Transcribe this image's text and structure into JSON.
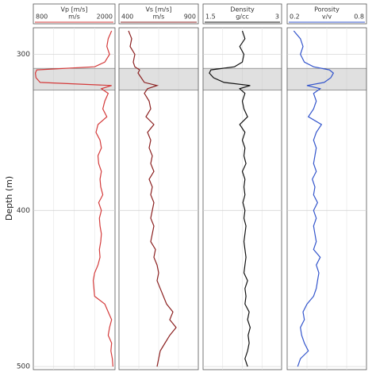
{
  "depth_axis": {
    "label": "Depth (m)",
    "ylim": [
      283,
      502
    ],
    "yticks": [
      300,
      400,
      500
    ],
    "shaded": [
      309,
      323
    ],
    "depth": [
      285,
      290,
      295,
      300,
      305,
      308,
      310,
      312,
      315,
      318,
      320,
      322,
      325,
      330,
      335,
      340,
      345,
      350,
      355,
      360,
      365,
      370,
      375,
      380,
      385,
      390,
      395,
      400,
      405,
      410,
      415,
      420,
      425,
      430,
      435,
      440,
      445,
      450,
      455,
      460,
      465,
      470,
      475,
      480,
      485,
      490,
      495,
      500
    ]
  },
  "chart_data": [
    {
      "type": "line",
      "title": "Vp [m/s]",
      "unit": "m/s",
      "xlim": [
        800,
        2000
      ],
      "xticks": [
        800,
        2000
      ],
      "color": "#d43a3a",
      "values": [
        1950,
        1900,
        1880,
        1920,
        1850,
        1700,
        850,
        830,
        840,
        900,
        1950,
        1800,
        1900,
        1850,
        1820,
        1880,
        1750,
        1720,
        1780,
        1800,
        1750,
        1760,
        1800,
        1780,
        1790,
        1820,
        1760,
        1800,
        1770,
        1780,
        1800,
        1790,
        1770,
        1780,
        1750,
        1700,
        1680,
        1690,
        1700,
        1850,
        1900,
        1950,
        1920,
        1900,
        1950,
        1940,
        1960,
        1970
      ]
    },
    {
      "type": "line",
      "title": "Vs [m/s]",
      "unit": "m/s",
      "xlim": [
        400,
        900
      ],
      "xticks": [
        400,
        900
      ],
      "color": "#8b2020",
      "values": [
        460,
        480,
        470,
        500,
        490,
        500,
        530,
        520,
        540,
        560,
        640,
        580,
        560,
        590,
        600,
        570,
        620,
        580,
        600,
        590,
        610,
        600,
        620,
        590,
        610,
        600,
        620,
        610,
        600,
        620,
        610,
        600,
        630,
        620,
        640,
        650,
        640,
        660,
        680,
        700,
        740,
        720,
        760,
        720,
        690,
        660,
        650,
        640
      ]
    },
    {
      "type": "line",
      "title": "Density",
      "unit": "g/cc",
      "xlim": [
        1.5,
        3
      ],
      "xticks": [
        1.5,
        3
      ],
      "color": "#111111",
      "values": [
        2.25,
        2.3,
        2.2,
        2.28,
        2.25,
        2.1,
        1.65,
        1.62,
        1.7,
        1.9,
        2.4,
        2.2,
        2.3,
        2.25,
        2.28,
        2.35,
        2.2,
        2.3,
        2.25,
        2.3,
        2.28,
        2.32,
        2.25,
        2.3,
        2.28,
        2.3,
        2.26,
        2.3,
        2.28,
        2.32,
        2.3,
        2.28,
        2.3,
        2.32,
        2.3,
        2.28,
        2.35,
        2.3,
        2.32,
        2.3,
        2.38,
        2.35,
        2.4,
        2.36,
        2.38,
        2.35,
        2.3,
        2.35
      ]
    },
    {
      "type": "line",
      "title": "Porosity",
      "unit": "v/v",
      "xlim": [
        0.2,
        0.8
      ],
      "xticks": [
        0.2,
        0.8
      ],
      "color": "#3355cc",
      "values": [
        0.25,
        0.3,
        0.32,
        0.3,
        0.33,
        0.4,
        0.52,
        0.55,
        0.53,
        0.48,
        0.35,
        0.45,
        0.4,
        0.42,
        0.4,
        0.36,
        0.46,
        0.42,
        0.4,
        0.42,
        0.41,
        0.4,
        0.42,
        0.39,
        0.41,
        0.4,
        0.43,
        0.4,
        0.42,
        0.4,
        0.41,
        0.42,
        0.4,
        0.45,
        0.42,
        0.44,
        0.43,
        0.42,
        0.4,
        0.35,
        0.32,
        0.33,
        0.3,
        0.31,
        0.33,
        0.36,
        0.3,
        0.28
      ]
    }
  ]
}
